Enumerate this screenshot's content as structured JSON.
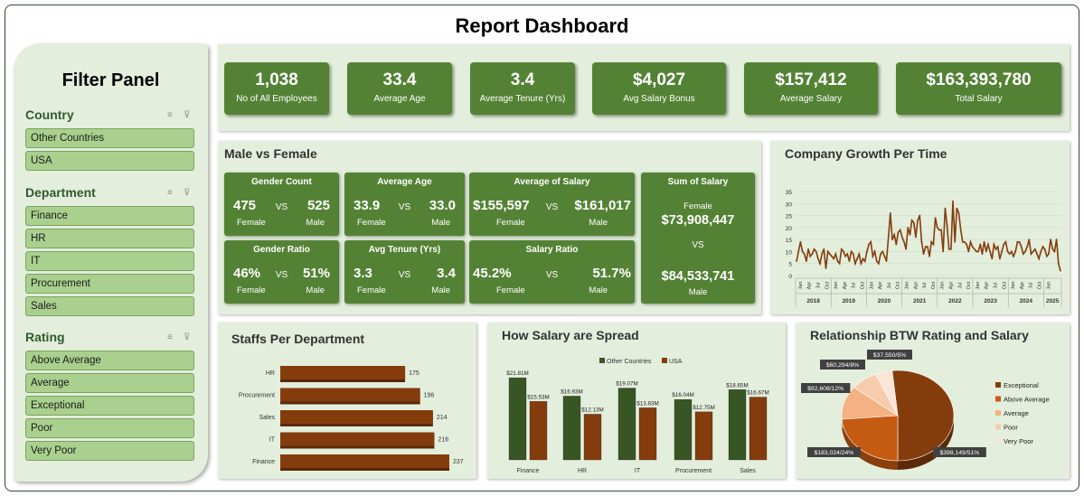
{
  "title": "Report Dashboard",
  "filter_panel": {
    "title": "Filter Panel",
    "slicers": [
      {
        "label": "Country",
        "items": [
          "Other Countries",
          "USA"
        ]
      },
      {
        "label": "Department",
        "items": [
          "Finance",
          "HR",
          "IT",
          "Procurement",
          "Sales"
        ]
      },
      {
        "label": "Rating",
        "items": [
          "Above Average",
          "Average",
          "Exceptional",
          "Poor",
          "Very Poor"
        ]
      }
    ]
  },
  "kpis": [
    {
      "value": "1,038",
      "label": "No of All Employees"
    },
    {
      "value": "33.4",
      "label": "Average Age"
    },
    {
      "value": "3.4",
      "label": "Average Tenure (Yrs)"
    },
    {
      "value": "$4,027",
      "label": "Avg Salary Bonus"
    },
    {
      "value": "$157,412",
      "label": "Average Salary"
    },
    {
      "value": "$163,393,780",
      "label": "Total Salary"
    }
  ],
  "gender": {
    "title": "Male vs Female",
    "vs": "VS",
    "female": "Female",
    "male": "Male",
    "boxes": [
      {
        "head": "Gender Count",
        "left": "475",
        "right": "525"
      },
      {
        "head": "Average Age",
        "left": "33.9",
        "right": "33.0"
      },
      {
        "head": "Average of Salary",
        "left": "$155,597",
        "right": "$161,017"
      },
      {
        "head": "Gender Ratio",
        "left": "46%",
        "right": "51%"
      },
      {
        "head": "Avg Tenure (Yrs)",
        "left": "3.3",
        "right": "3.4"
      },
      {
        "head": "Salary Ratio",
        "left": "45.2%",
        "right": "51.7%"
      }
    ],
    "sum": {
      "head": "Sum of Salary",
      "female_value": "$73,908,447",
      "male_value": "$84,533,741"
    }
  },
  "growth": {
    "title": "Company Growth Per Time",
    "chart_data": {
      "type": "line",
      "title": "Company Growth Per Time",
      "ylim": [
        0,
        35
      ],
      "yticks": [
        "0",
        "5",
        "10",
        "15",
        "20",
        "25",
        "30",
        "35"
      ],
      "years": [
        "2018",
        "2019",
        "2020",
        "2021",
        "2022",
        "2023",
        "2024",
        "2025"
      ],
      "month_ticks": [
        "Jan",
        "Apr",
        "Jul",
        "Oct"
      ],
      "color": "#843c0c",
      "values": [
        6,
        10,
        14,
        10,
        9,
        6,
        11,
        8,
        9,
        11,
        10,
        7,
        5,
        9,
        11,
        3,
        10,
        9,
        8,
        7,
        9,
        6,
        5,
        11,
        10,
        8,
        9,
        6,
        10,
        9,
        5,
        7,
        9,
        5,
        7,
        6,
        10,
        13,
        14,
        8,
        10,
        6,
        5,
        9,
        10,
        8,
        6,
        16,
        26,
        15,
        17,
        13,
        18,
        19,
        16,
        14,
        11,
        20,
        17,
        23,
        22,
        16,
        23,
        25,
        14,
        9,
        12,
        12,
        8,
        14,
        13,
        24,
        20,
        19,
        19,
        10,
        28,
        21,
        11,
        11,
        31,
        14,
        28,
        26,
        19,
        14,
        14,
        13,
        10,
        14,
        12,
        11,
        10,
        10,
        13,
        9,
        14,
        10,
        13,
        10,
        7,
        13,
        11,
        12,
        7,
        10,
        13,
        14,
        10,
        9,
        10,
        8,
        10,
        14,
        14,
        12,
        9,
        10,
        12,
        15,
        9,
        10,
        11,
        9,
        7,
        10,
        12,
        11,
        8,
        9,
        15,
        11,
        10,
        15,
        5,
        2
      ]
    }
  },
  "staff": {
    "title": "Staffs Per Department",
    "chart_data": {
      "type": "bar",
      "orientation": "horizontal",
      "categories": [
        "HR",
        "Procurement",
        "Sales",
        "IT",
        "Finance"
      ],
      "values": [
        175,
        196,
        214,
        216,
        237
      ],
      "color": "#843c0c"
    }
  },
  "spread": {
    "title": "How Salary are Spread",
    "chart_data": {
      "type": "bar",
      "categories": [
        "Finance",
        "HR",
        "IT",
        "Procurement",
        "Sales"
      ],
      "series": [
        {
          "name": "Other Countries",
          "values": [
            21.81,
            16.93,
            19.07,
            16.04,
            18.65
          ],
          "labels": [
            "$21.81M",
            "$16.93M",
            "$19.07M",
            "$16.04M",
            "$18.65M"
          ],
          "color": "#375623"
        },
        {
          "name": "USA",
          "values": [
            15.53,
            12.13,
            13.83,
            12.75,
            16.67
          ],
          "labels": [
            "$15.53M",
            "$12.13M",
            "$13.83M",
            "$12.75M",
            "$16.67M"
          ],
          "color": "#843c0c"
        }
      ],
      "legend": "top"
    }
  },
  "rating": {
    "title": "Relationship BTW Rating and Salary",
    "chart_data": {
      "type": "pie",
      "labels": [
        "Exceptional",
        "Above Average",
        "Average",
        "Poor",
        "Very Poor"
      ],
      "values": [
        398149,
        183024,
        92608,
        60294,
        37550
      ],
      "data_labels": [
        "$398,149/51%",
        "$183,024/24%",
        "$92,608/12%",
        "$60,294/8%",
        "$37,550/5%"
      ],
      "colors": [
        "#843c0c",
        "#c55a11",
        "#f4b183",
        "#f8cbad",
        "#fbe5d6"
      ],
      "legend": "right"
    }
  }
}
